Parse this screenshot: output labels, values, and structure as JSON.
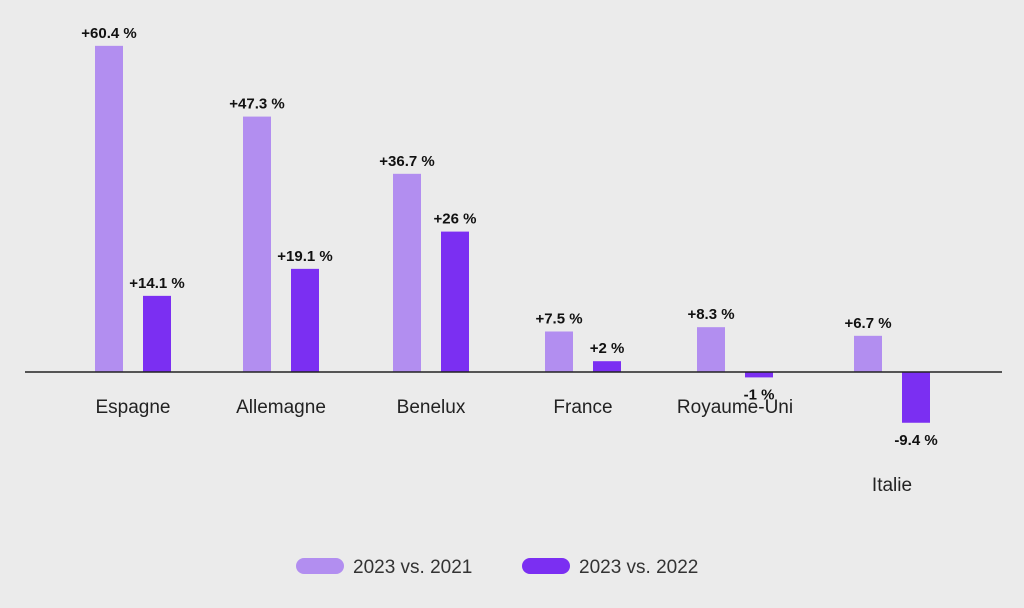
{
  "chart_data": {
    "type": "bar",
    "categories": [
      "Espagne",
      "Allemagne",
      "Benelux",
      "France",
      "Royaume-Uni",
      "Italie"
    ],
    "series": [
      {
        "name": "2023 vs. 2021",
        "color": "#b28ef0",
        "values": [
          60.4,
          47.3,
          36.7,
          7.5,
          8.3,
          6.7
        ],
        "labels": [
          "+60.4 %",
          "+47.3 %",
          "+36.7 %",
          "+7.5 %",
          "+8.3 %",
          "+6.7 %"
        ]
      },
      {
        "name": "2023 vs. 2022",
        "color": "#7b2ff2",
        "values": [
          14.1,
          19.1,
          26,
          2,
          -1,
          -9.4
        ],
        "labels": [
          "+14.1 %",
          "+19.1 %",
          "+26 %",
          "+2 %",
          "-1 %",
          "-9.4 %"
        ]
      }
    ],
    "ylim": [
      -10,
      62
    ],
    "grid": false,
    "legend_position": "bottom-center",
    "zero_line": true
  }
}
